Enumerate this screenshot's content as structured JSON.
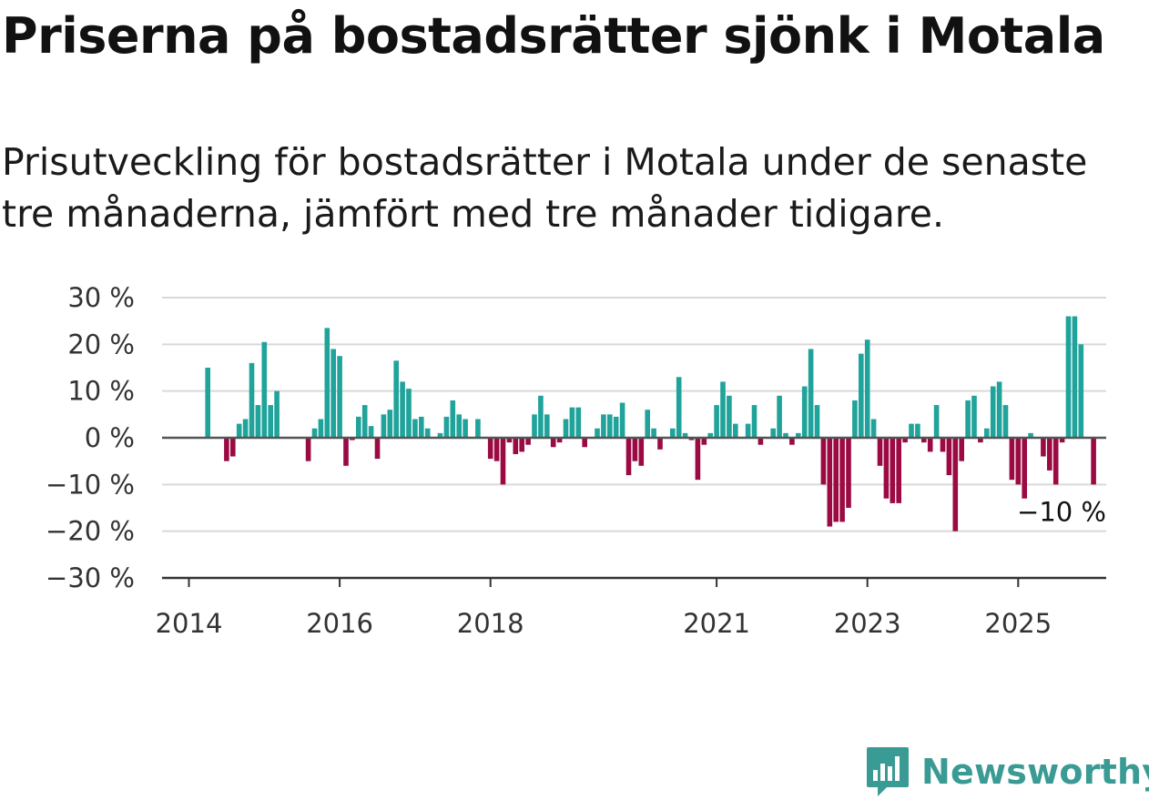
{
  "title": "Priserna på bostadsrätter sjönk i Motala",
  "subtitle": "Prisutveckling för bostadsrätter i Motala under de senaste tre månaderna, jämfört med tre månader tidigare.",
  "brand": {
    "name": "Newsworthy",
    "icon": "newsworthy-logo-icon",
    "color": "#3a9a94"
  },
  "colors": {
    "positive": "#1fa39a",
    "negative": "#9b0a43",
    "grid": "#d9d9d9",
    "zero": "#555555"
  },
  "chart_data": {
    "type": "bar",
    "title": "",
    "xlabel": "",
    "ylabel": "",
    "ylim": [
      -30,
      30
    ],
    "y_ticks": [
      30,
      20,
      10,
      0,
      -10,
      -20,
      -30
    ],
    "y_tick_labels": [
      "30 %",
      "20 %",
      "10 %",
      "0 %",
      "−10 %",
      "−20 %",
      "−30 %"
    ],
    "x_ticks": [
      {
        "label": "2014",
        "index": 0
      },
      {
        "label": "2016",
        "index": 24
      },
      {
        "label": "2018",
        "index": 48
      },
      {
        "label": "2021",
        "index": 84
      },
      {
        "label": "2023",
        "index": 108
      },
      {
        "label": "2025",
        "index": 132
      }
    ],
    "start_month": "2014-01",
    "unit": "%",
    "values": [
      0,
      0,
      0,
      15,
      0,
      0,
      -5,
      -4,
      3,
      4,
      16,
      7,
      20.5,
      7,
      10,
      0,
      0,
      0,
      0,
      -5,
      2,
      4,
      23.5,
      19,
      17.5,
      -6,
      -0.5,
      4.5,
      7,
      2.5,
      -4.5,
      5,
      6,
      16.5,
      12,
      10.5,
      4,
      4.5,
      2,
      0,
      1,
      4.5,
      8,
      5,
      4,
      0,
      4,
      0,
      -4.5,
      -5,
      -10,
      -1,
      -3.5,
      -3,
      -1.5,
      5,
      9,
      5,
      -2,
      -1,
      4,
      6.5,
      6.5,
      -2,
      0,
      2,
      5,
      5,
      4.5,
      7.5,
      -8,
      -5,
      -6,
      6,
      2,
      -2.5,
      0,
      2,
      13,
      1,
      -0.5,
      -9,
      -1.5,
      1,
      7,
      12,
      9,
      3,
      0,
      3,
      7,
      -1.5,
      0,
      2,
      9,
      1,
      -1.5,
      1,
      11,
      19,
      7,
      -10,
      -19,
      -18,
      -18,
      -15,
      8,
      18,
      21,
      4,
      -6,
      -13,
      -14,
      -14,
      -1,
      3,
      3,
      -1,
      -3,
      7,
      -3,
      -8,
      -20,
      -5,
      8,
      9,
      -1,
      2,
      11,
      12,
      7,
      -9,
      -10,
      -13,
      1,
      0,
      -4,
      -7,
      -10,
      -1,
      26,
      26,
      20,
      0,
      -10
    ],
    "last_value_label": "−10 %"
  }
}
